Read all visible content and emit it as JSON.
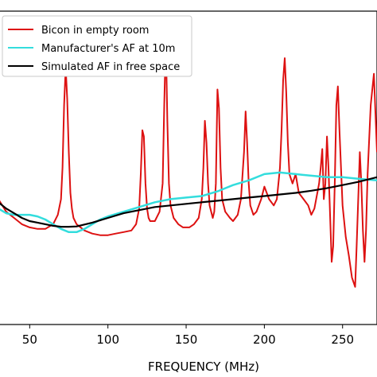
{
  "chart_data": {
    "type": "line",
    "xlabel": "FREQUENCY (MHz)",
    "ylabel": "",
    "xlim": [
      30,
      272
    ],
    "ylim": [
      0,
      100
    ],
    "x_ticks": [
      50,
      100,
      150,
      200,
      250
    ],
    "grid": false,
    "legend_placement": "top-left",
    "series": [
      {
        "name": "Bicon in empty room",
        "color": "#dd1111",
        "x": [
          30,
          35,
          40,
          45,
          50,
          55,
          60,
          65,
          68,
          70,
          71,
          72,
          73,
          74,
          75,
          76,
          77,
          78,
          80,
          85,
          90,
          95,
          100,
          105,
          110,
          115,
          118,
          120,
          121,
          122,
          123,
          124,
          125,
          126,
          127,
          130,
          133,
          135,
          136,
          137,
          138,
          139,
          140,
          142,
          145,
          148,
          150,
          152,
          155,
          158,
          160,
          161,
          162,
          163,
          164,
          165,
          167,
          168,
          169,
          170,
          171,
          172,
          173,
          175,
          178,
          180,
          183,
          185,
          187,
          188,
          189,
          190,
          191,
          193,
          195,
          198,
          200,
          203,
          206,
          208,
          210,
          211,
          212,
          213,
          214,
          215,
          216,
          218,
          220,
          222,
          225,
          228,
          230,
          232,
          235,
          236,
          237,
          238,
          239,
          240,
          241,
          242,
          243,
          244,
          245,
          246,
          247,
          248,
          250,
          252,
          254,
          256,
          258,
          259,
          260,
          261,
          262,
          263,
          264,
          265,
          266,
          268,
          270,
          272
        ],
        "y": [
          40,
          36,
          34,
          32,
          31,
          30.5,
          30.5,
          32,
          35,
          40,
          50,
          70,
          82,
          72,
          55,
          42,
          37,
          34,
          32,
          30,
          29,
          28.5,
          28.5,
          29,
          29.5,
          30,
          32,
          37,
          48,
          62,
          60,
          45,
          37,
          34,
          33,
          33,
          36,
          45,
          70,
          91,
          65,
          45,
          38,
          34,
          32,
          31,
          31,
          31,
          32,
          34,
          40,
          50,
          65,
          58,
          45,
          38,
          34,
          36,
          45,
          75,
          69,
          50,
          40,
          36,
          34,
          33,
          35,
          40,
          55,
          68,
          58,
          45,
          38,
          35,
          36,
          40,
          44,
          40,
          38,
          40,
          50,
          62,
          78,
          85,
          74,
          58,
          48,
          45,
          48,
          42,
          40,
          38,
          35,
          37,
          45,
          50,
          56,
          40,
          45,
          60,
          50,
          35,
          20,
          25,
          45,
          70,
          76,
          62,
          38,
          28,
          22,
          15,
          12,
          25,
          40,
          55,
          45,
          30,
          20,
          30,
          48,
          70,
          80,
          55
        ]
      },
      {
        "name": "Manufacturer's AF at 10m",
        "color": "#33dddd",
        "x": [
          30,
          35,
          40,
          45,
          50,
          55,
          60,
          65,
          70,
          75,
          80,
          85,
          90,
          95,
          100,
          110,
          120,
          130,
          140,
          150,
          160,
          170,
          180,
          190,
          200,
          210,
          220,
          230,
          240,
          250,
          260,
          272
        ],
        "y": [
          37,
          35.5,
          35,
          35,
          35,
          34.5,
          33.5,
          32,
          30.5,
          29.5,
          29.5,
          30.5,
          32,
          33.5,
          34.5,
          36,
          37.5,
          39,
          40,
          40.5,
          41,
          42.5,
          44.5,
          46,
          48,
          48.5,
          48,
          47.5,
          47,
          47,
          46.5,
          46
        ]
      },
      {
        "name": "Simulated AF in free space",
        "color": "#000000",
        "x": [
          30,
          35,
          40,
          45,
          50,
          55,
          60,
          65,
          70,
          75,
          80,
          90,
          100,
          110,
          120,
          130,
          140,
          150,
          160,
          170,
          180,
          190,
          200,
          210,
          220,
          230,
          240,
          250,
          260,
          272
        ],
        "y": [
          39,
          37,
          35.5,
          34,
          33,
          32.5,
          32,
          31.5,
          31.2,
          31.2,
          31.3,
          32.5,
          34,
          35.5,
          36.5,
          37.5,
          38,
          38.5,
          39,
          39.5,
          40,
          40.5,
          41,
          41.5,
          42,
          42.7,
          43.5,
          44.5,
          45.5,
          47
        ]
      }
    ]
  }
}
